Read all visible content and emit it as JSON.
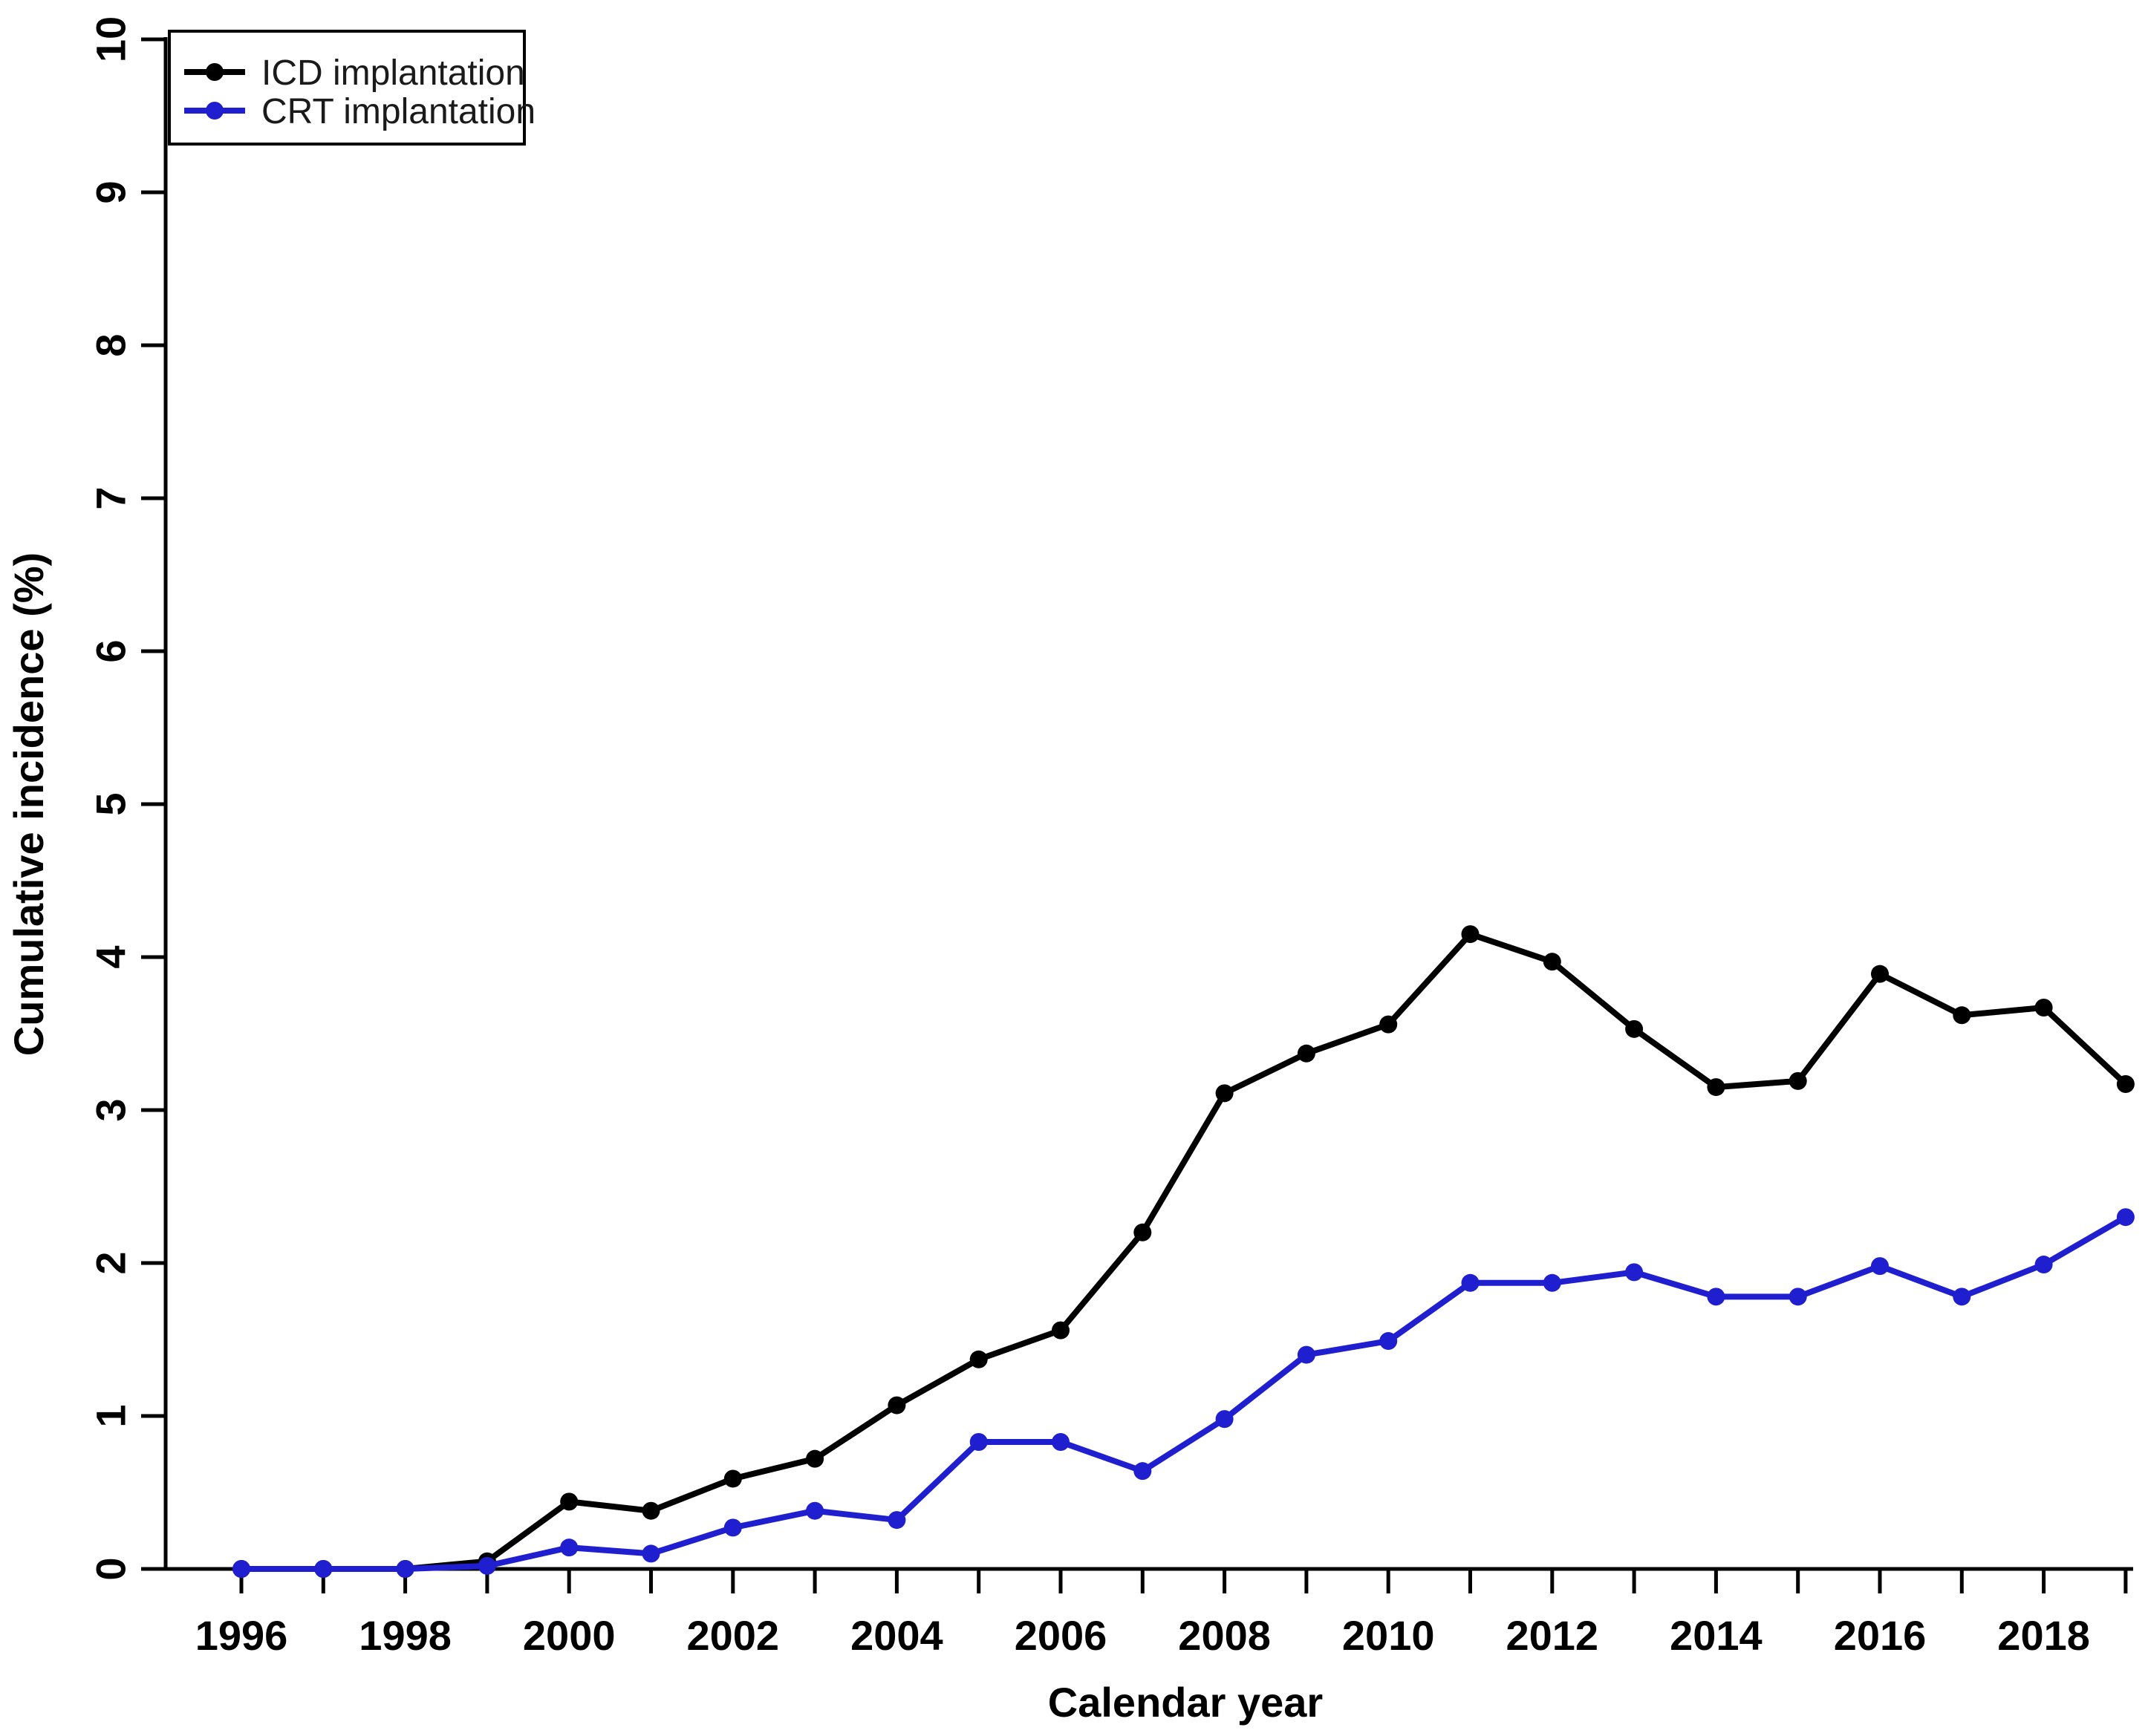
{
  "figure": {
    "background": "#ffffff",
    "frame_color": "#000000"
  },
  "chart_data": {
    "type": "line",
    "title": "",
    "xlabel": "Calendar year",
    "ylabel": "Cumulative incidence (%)",
    "x": [
      1996,
      1997,
      1998,
      1999,
      2000,
      2001,
      2002,
      2003,
      2004,
      2005,
      2006,
      2007,
      2008,
      2009,
      2010,
      2011,
      2012,
      2013,
      2014,
      2015,
      2016,
      2017,
      2018,
      2019
    ],
    "x_tick_labels": [
      "1996",
      "1998",
      "2000",
      "2002",
      "2004",
      "2006",
      "2008",
      "2010",
      "2012",
      "2014",
      "2016",
      "2018"
    ],
    "y_ticks": [
      "0",
      "1",
      "2",
      "3",
      "4",
      "5",
      "6",
      "7",
      "8",
      "9",
      "10"
    ],
    "xlim": [
      1996,
      2019
    ],
    "ylim": [
      0,
      10
    ],
    "grid": false,
    "legend_position": "top-left",
    "series": [
      {
        "id": "icd",
        "name": "ICD implantation",
        "color": "#000000",
        "marker": "circle",
        "values": [
          0,
          0,
          0,
          0.05,
          0.44,
          0.38,
          0.59,
          0.72,
          1.07,
          1.37,
          1.56,
          2.2,
          3.11,
          3.37,
          3.56,
          4.15,
          3.97,
          3.53,
          3.15,
          3.19,
          3.89,
          3.62,
          3.67,
          3.17
        ]
      },
      {
        "id": "crt",
        "name": "CRT implantation",
        "color": "#1f1fd0",
        "marker": "circle",
        "values": [
          0,
          0,
          0,
          0.02,
          0.14,
          0.1,
          0.27,
          0.38,
          0.32,
          0.83,
          0.83,
          0.64,
          0.98,
          1.4,
          1.49,
          1.87,
          1.87,
          1.94,
          1.78,
          1.78,
          1.98,
          1.78,
          1.99,
          2.3
        ]
      }
    ]
  }
}
